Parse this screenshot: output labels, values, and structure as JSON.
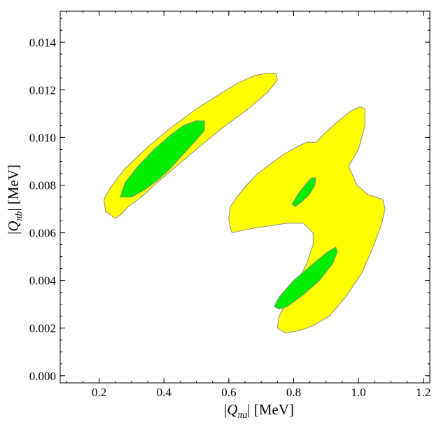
{
  "chart_data": {
    "type": "contour",
    "title": "",
    "xlabel": {
      "pre": "|",
      "var": "Q",
      "sub": "πa",
      "post": "| [MeV]"
    },
    "ylabel": {
      "pre": "|",
      "var": "Q",
      "sub": "πb",
      "post": "| [MeV]"
    },
    "xlim": [
      0.08,
      1.22
    ],
    "ylim": [
      -0.0003,
      0.0153
    ],
    "x_ticks": [
      {
        "value": 0.2,
        "label": "0.2"
      },
      {
        "value": 0.4,
        "label": "0.4"
      },
      {
        "value": 0.6,
        "label": "0.6"
      },
      {
        "value": 0.8,
        "label": "0.8"
      },
      {
        "value": 1.0,
        "label": "1.0"
      },
      {
        "value": 1.2,
        "label": "1.2"
      }
    ],
    "y_ticks": [
      {
        "value": 0.0,
        "label": "0.000"
      },
      {
        "value": 0.002,
        "label": "0.002"
      },
      {
        "value": 0.004,
        "label": "0.004"
      },
      {
        "value": 0.006,
        "label": "0.006"
      },
      {
        "value": 0.008,
        "label": "0.008"
      },
      {
        "value": 0.01,
        "label": "0.010"
      },
      {
        "value": 0.012,
        "label": "0.012"
      },
      {
        "value": 0.014,
        "label": "0.014"
      }
    ],
    "x_minor_step": 0.05,
    "y_minor_step": 0.0005,
    "grid": false,
    "legend": "none",
    "colors": {
      "outer_region": "#ffff00",
      "inner_region": "#00ee00",
      "outline": "#8a8a8a"
    },
    "regions": [
      {
        "level": "outer",
        "points": [
          [
            0.25,
            0.0066
          ],
          [
            0.22,
            0.0069
          ],
          [
            0.215,
            0.0074
          ],
          [
            0.235,
            0.0079
          ],
          [
            0.28,
            0.0087
          ],
          [
            0.35,
            0.0096
          ],
          [
            0.42,
            0.0104
          ],
          [
            0.5,
            0.0112
          ],
          [
            0.57,
            0.0118
          ],
          [
            0.63,
            0.0123
          ],
          [
            0.68,
            0.0126
          ],
          [
            0.72,
            0.0127
          ],
          [
            0.745,
            0.0127
          ],
          [
            0.75,
            0.0124
          ],
          [
            0.72,
            0.0119
          ],
          [
            0.66,
            0.0112
          ],
          [
            0.58,
            0.0104
          ],
          [
            0.5,
            0.0095
          ],
          [
            0.43,
            0.0087
          ],
          [
            0.37,
            0.008
          ],
          [
            0.33,
            0.0075
          ],
          [
            0.29,
            0.0071
          ],
          [
            0.27,
            0.0068
          ]
        ]
      },
      {
        "level": "outer",
        "points": [
          [
            0.605,
            0.0062
          ],
          [
            0.6,
            0.0066
          ],
          [
            0.605,
            0.0071
          ],
          [
            0.625,
            0.0075
          ],
          [
            0.655,
            0.008
          ],
          [
            0.69,
            0.0085
          ],
          [
            0.73,
            0.0089
          ],
          [
            0.77,
            0.0093
          ],
          [
            0.81,
            0.0096
          ],
          [
            0.84,
            0.0098
          ],
          [
            0.87,
            0.0098
          ],
          [
            0.89,
            0.0101
          ],
          [
            0.93,
            0.0106
          ],
          [
            0.975,
            0.0111
          ],
          [
            1.005,
            0.0113
          ],
          [
            1.02,
            0.0112
          ],
          [
            1.02,
            0.0105
          ],
          [
            1.0,
            0.0095
          ],
          [
            0.97,
            0.0088
          ],
          [
            0.995,
            0.008
          ],
          [
            1.03,
            0.0076
          ],
          [
            1.075,
            0.0074
          ],
          [
            1.082,
            0.007
          ],
          [
            1.07,
            0.0063
          ],
          [
            1.045,
            0.0054
          ],
          [
            1.01,
            0.0043
          ],
          [
            0.96,
            0.0033
          ],
          [
            0.91,
            0.0025
          ],
          [
            0.86,
            0.0021
          ],
          [
            0.82,
            0.0019
          ],
          [
            0.775,
            0.0018
          ],
          [
            0.75,
            0.002
          ],
          [
            0.755,
            0.0025
          ],
          [
            0.78,
            0.0031
          ],
          [
            0.81,
            0.0039
          ],
          [
            0.84,
            0.0047
          ],
          [
            0.86,
            0.0055
          ],
          [
            0.86,
            0.006
          ],
          [
            0.83,
            0.0064
          ],
          [
            0.78,
            0.0064
          ],
          [
            0.73,
            0.0063
          ],
          [
            0.68,
            0.0062
          ],
          [
            0.64,
            0.0061
          ],
          [
            0.61,
            0.006
          ]
        ]
      },
      {
        "level": "inner",
        "points": [
          [
            0.265,
            0.0075
          ],
          [
            0.28,
            0.0081
          ],
          [
            0.32,
            0.0088
          ],
          [
            0.37,
            0.0095
          ],
          [
            0.42,
            0.0101
          ],
          [
            0.46,
            0.0105
          ],
          [
            0.5,
            0.0107
          ],
          [
            0.525,
            0.0107
          ],
          [
            0.525,
            0.0103
          ],
          [
            0.5,
            0.0099
          ],
          [
            0.46,
            0.0093
          ],
          [
            0.42,
            0.0087
          ],
          [
            0.38,
            0.0082
          ],
          [
            0.34,
            0.0078
          ],
          [
            0.3,
            0.0075
          ]
        ]
      },
      {
        "level": "inner",
        "points": [
          [
            0.795,
            0.0072
          ],
          [
            0.812,
            0.0076
          ],
          [
            0.835,
            0.008
          ],
          [
            0.855,
            0.0083
          ],
          [
            0.868,
            0.0083
          ],
          [
            0.866,
            0.008
          ],
          [
            0.848,
            0.0076
          ],
          [
            0.825,
            0.0073
          ],
          [
            0.805,
            0.0071
          ]
        ]
      },
      {
        "level": "inner",
        "points": [
          [
            0.74,
            0.0029
          ],
          [
            0.755,
            0.0033
          ],
          [
            0.8,
            0.004
          ],
          [
            0.86,
            0.0047
          ],
          [
            0.905,
            0.0052
          ],
          [
            0.93,
            0.0054
          ],
          [
            0.935,
            0.0052
          ],
          [
            0.92,
            0.0047
          ],
          [
            0.88,
            0.004
          ],
          [
            0.83,
            0.0034
          ],
          [
            0.78,
            0.0029
          ],
          [
            0.755,
            0.0028
          ]
        ]
      }
    ]
  }
}
